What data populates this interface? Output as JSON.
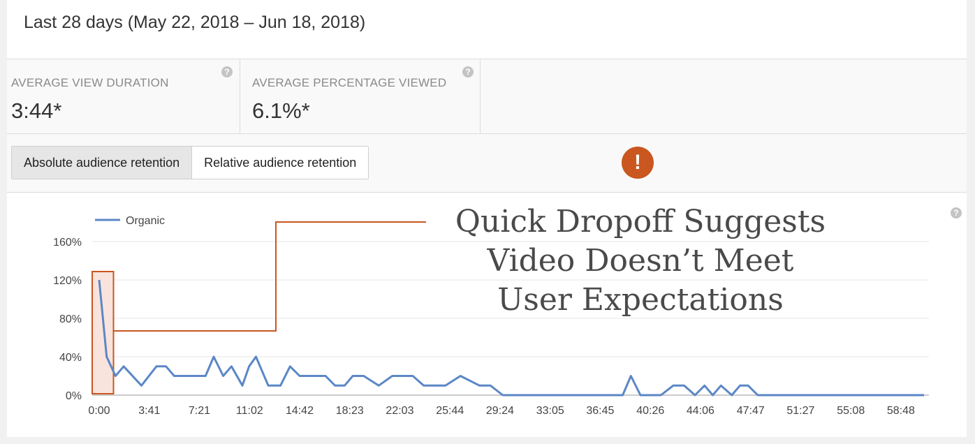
{
  "header": {
    "date_range": "Last 28 days (May 22, 2018 – Jun 18, 2018)"
  },
  "metrics": [
    {
      "label": "AVERAGE VIEW DURATION",
      "value": "3:44*",
      "help": "?"
    },
    {
      "label": "AVERAGE PERCENTAGE VIEWED",
      "value": "6.1%*",
      "help": "?"
    }
  ],
  "toggles": {
    "absolute_label": "Absolute audience retention",
    "relative_label": "Relative audience retention"
  },
  "alert_symbol": "!",
  "chart_help": "?",
  "annotation": {
    "lines": [
      "Quick Dropoff Suggests",
      "Video Doesn’t Meet",
      "User Expectations"
    ],
    "highlight_x_range": [
      0,
      1.05
    ]
  },
  "colors": {
    "series": "#5b87c6",
    "annotation": "#c9571f",
    "alert": "#c9571f"
  },
  "chart_data": {
    "type": "line",
    "legend": "top-left",
    "grid": true,
    "xlim": [
      0,
      60.6
    ],
    "ylim": [
      0,
      160
    ],
    "yticks": [
      0,
      40,
      80,
      120,
      160
    ],
    "ytick_labels": [
      "0%",
      "40%",
      "80%",
      "120%",
      "160%"
    ],
    "xtick_labels": [
      "0:00",
      "3:41",
      "7:21",
      "11:02",
      "14:42",
      "18:23",
      "22:03",
      "25:44",
      "29:24",
      "33:05",
      "36:45",
      "40:26",
      "44:06",
      "47:47",
      "51:27",
      "55:08",
      "58:48"
    ],
    "xtick_minutes": [
      0,
      3.68,
      7.35,
      11.03,
      14.7,
      18.38,
      22.05,
      25.73,
      29.4,
      33.08,
      36.75,
      40.43,
      44.1,
      47.78,
      51.45,
      55.13,
      58.8
    ],
    "series": [
      {
        "name": "Organic",
        "x": [
          0,
          0.55,
          1.2,
          1.8,
          3.1,
          4.2,
          4.9,
          5.5,
          6.2,
          7.8,
          8.4,
          9.1,
          9.7,
          10.5,
          11.0,
          11.5,
          12.4,
          13.3,
          14.0,
          14.7,
          15.4,
          16.6,
          17.3,
          18.0,
          18.6,
          19.4,
          20.5,
          21.5,
          23.0,
          23.8,
          24.5,
          25.4,
          26.5,
          27.9,
          28.7,
          29.6,
          31.1,
          33.0,
          38.4,
          39.0,
          39.7,
          40.4,
          41.2,
          42.1,
          42.9,
          43.7,
          44.4,
          45.0,
          45.6,
          46.4,
          47.0,
          47.6,
          48.3,
          60.5
        ],
        "y": [
          120,
          40,
          20,
          30,
          10,
          30,
          30,
          20,
          20,
          20,
          40,
          20,
          30,
          10,
          30,
          40,
          10,
          10,
          30,
          20,
          20,
          20,
          10,
          10,
          20,
          20,
          10,
          20,
          20,
          10,
          10,
          10,
          20,
          10,
          10,
          0,
          0,
          0,
          0,
          20,
          0,
          0,
          0,
          10,
          10,
          0,
          10,
          0,
          10,
          0,
          10,
          10,
          0,
          0
        ]
      }
    ]
  }
}
